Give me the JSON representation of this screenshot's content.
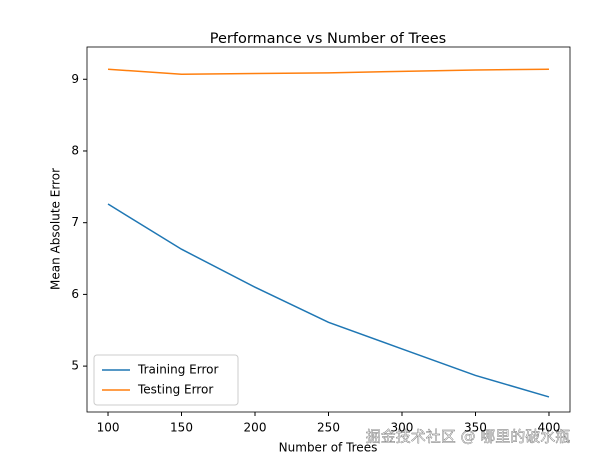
{
  "chart_data": {
    "type": "line",
    "title": "Performance vs Number of Trees",
    "x_label": "Number of Trees",
    "y_label": "Mean Absolute Error",
    "x": [
      100,
      150,
      200,
      250,
      300,
      350,
      400
    ],
    "series": [
      {
        "name": "Training Error",
        "color": "#1f77b4",
        "values": [
          7.26,
          6.63,
          6.1,
          5.61,
          5.24,
          4.87,
          4.57
        ]
      },
      {
        "name": "Testing Error",
        "color": "#ff7f0e",
        "values": [
          9.14,
          9.07,
          9.08,
          9.09,
          9.11,
          9.13,
          9.14
        ]
      }
    ],
    "xlim": [
      85.7,
      414.3
    ],
    "xticks": [
      100,
      150,
      200,
      250,
      300,
      350,
      400
    ],
    "ylim": [
      4.36,
      9.45
    ],
    "yticks": [
      5,
      6,
      7,
      8,
      9
    ],
    "grid": false,
    "legend": "lower left",
    "watermark": "掘金技术社区 @ 哪里的破水瓶"
  }
}
